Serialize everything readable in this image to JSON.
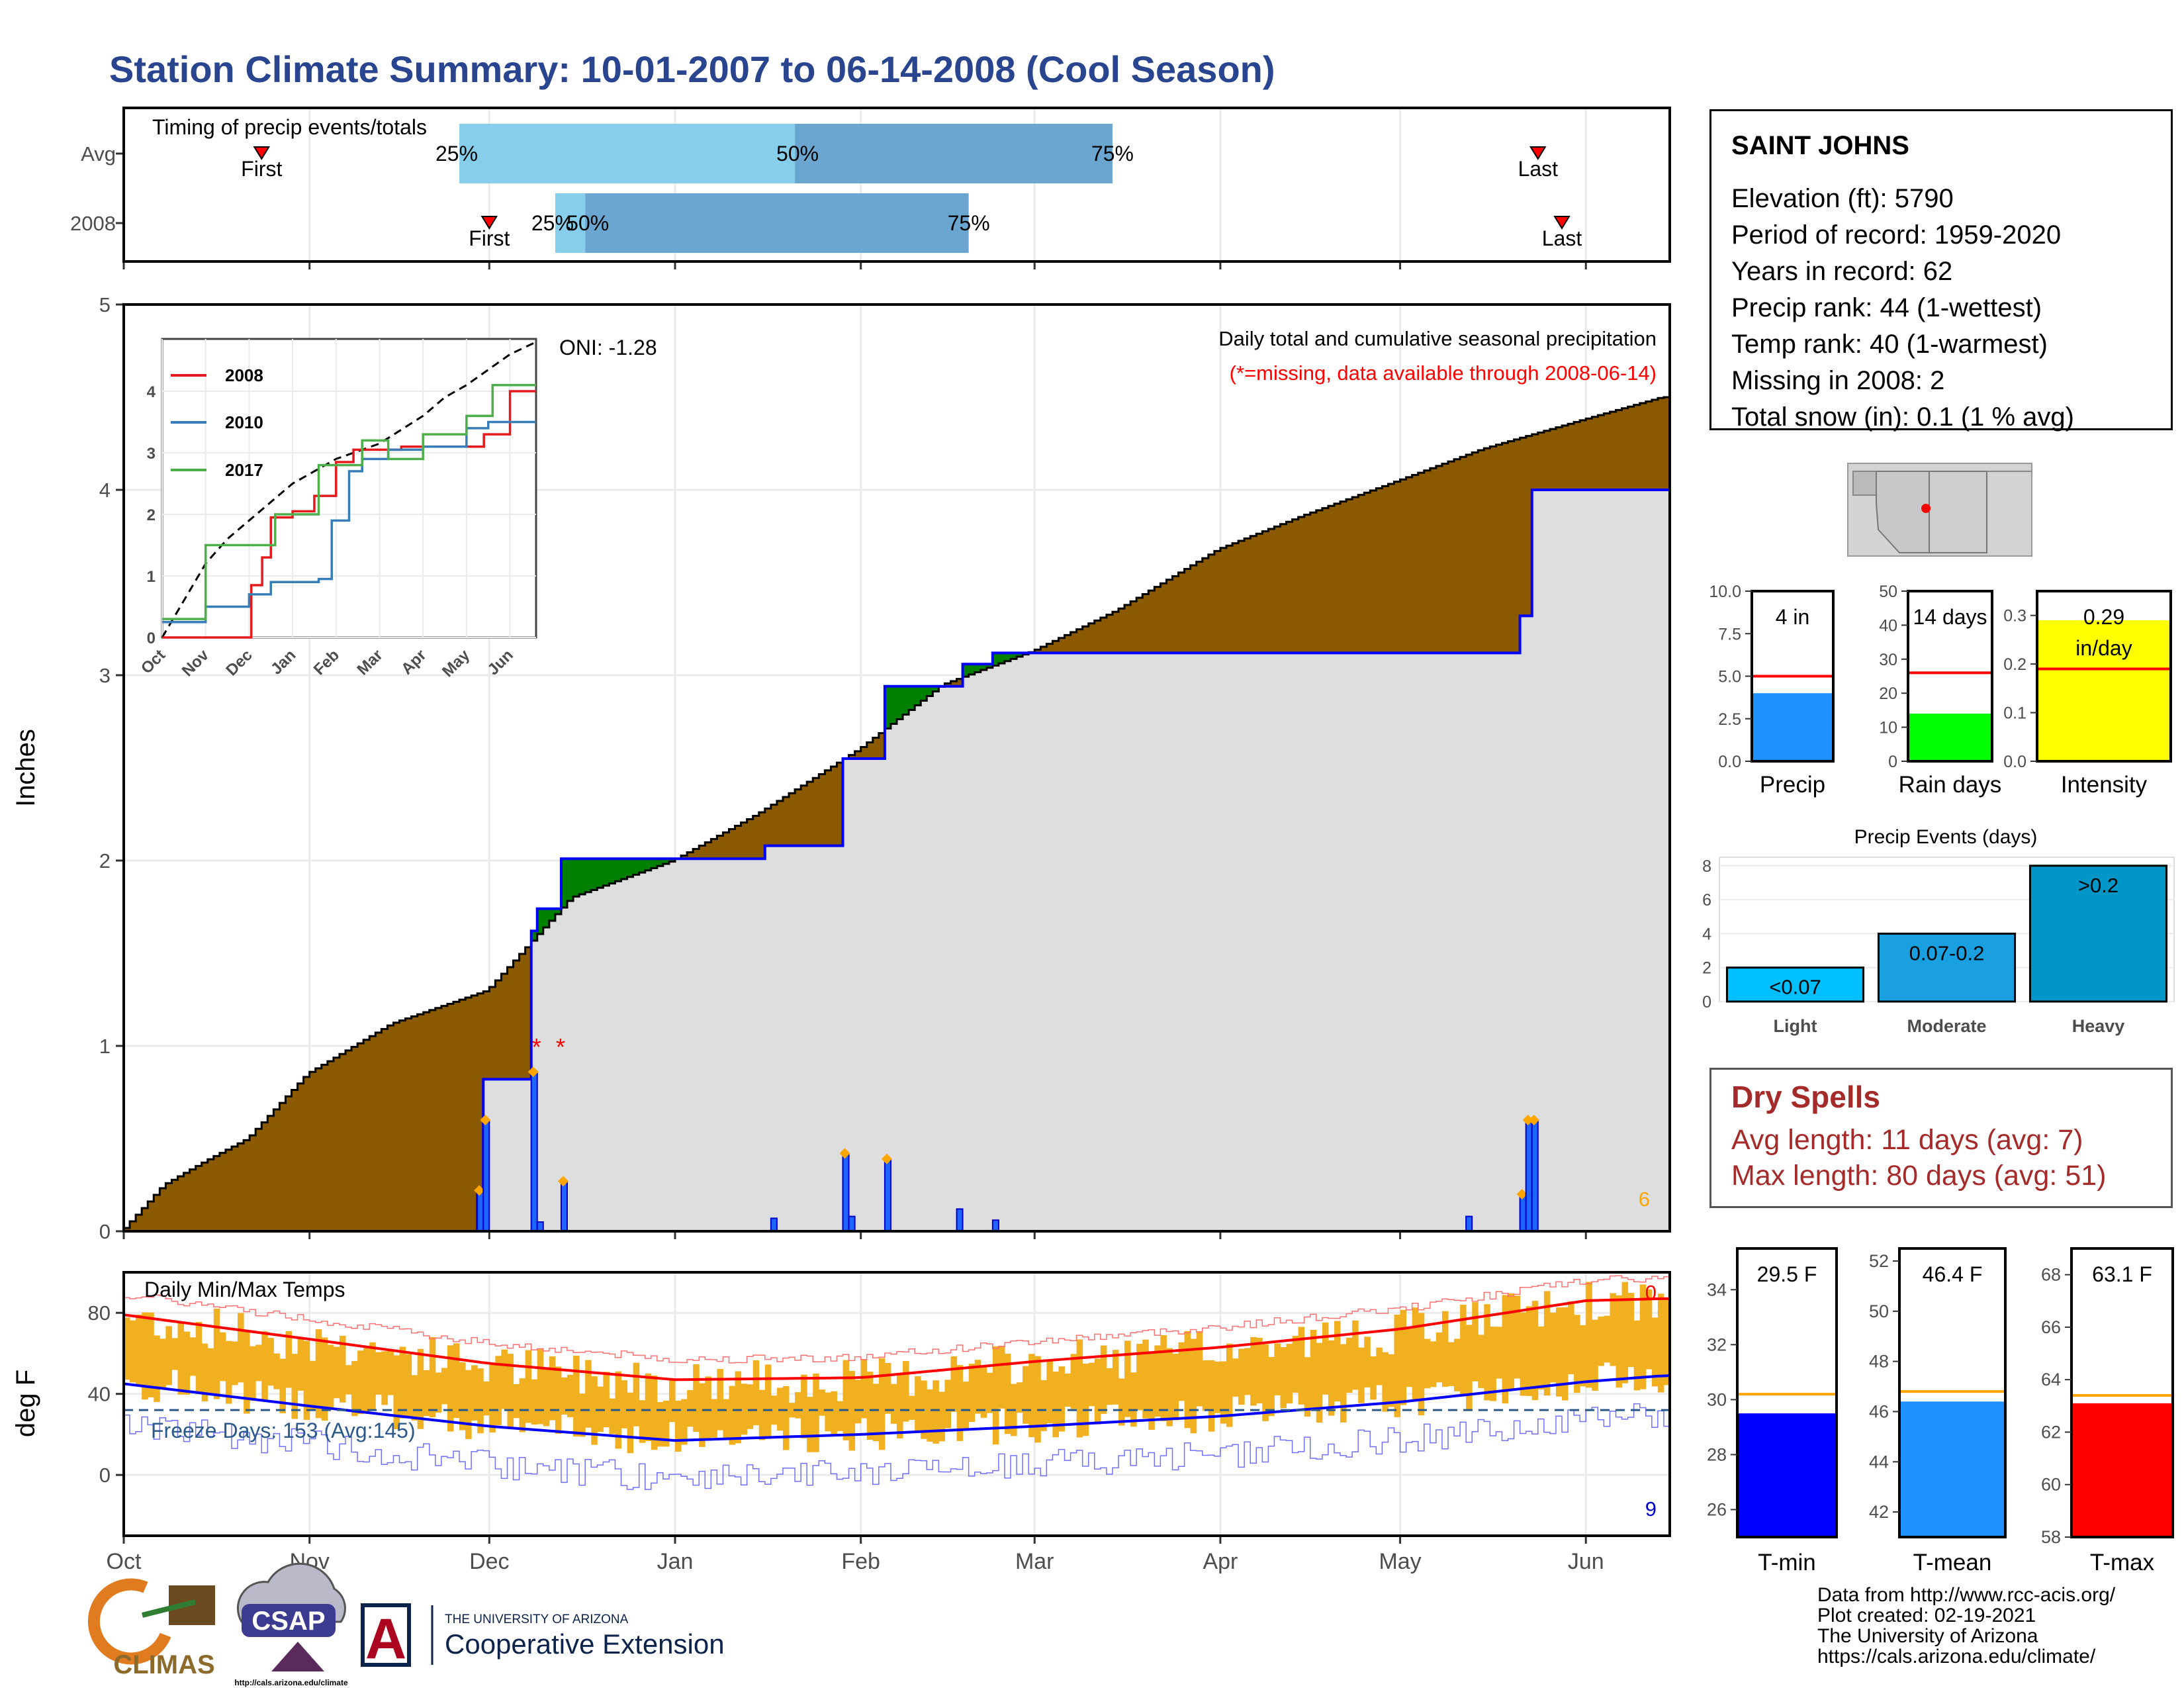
{
  "title": "Station Climate Summary: 10-01-2007 to 06-14-2008 (Cool Season)",
  "months": [
    "Oct",
    "Nov",
    "Dec",
    "Jan",
    "Feb",
    "Mar",
    "Apr",
    "May",
    "Jun"
  ],
  "timing": {
    "label": "Timing of precip events/totals",
    "rows": [
      "Avg",
      "2008"
    ],
    "first_label": "First",
    "last_label": "Last",
    "pct_labels": [
      "25%",
      "50%",
      "75%"
    ],
    "avg": {
      "first": "2007-10-24",
      "p25": "2007-11-26",
      "p50": "2008-01-21",
      "p75": "2008-03-14",
      "last": "2008-05-24"
    },
    "y2008": {
      "first": "2007-12-01",
      "p25": "2007-12-12",
      "p50": "2007-12-17",
      "p75": "2008-02-19",
      "last": "2008-05-28"
    }
  },
  "colors": {
    "above_normal": "#8b5a00",
    "below_normal": "#008000",
    "cumulative_2008": "#0000ff",
    "normal_fill": "#dedede",
    "bar_light": "#87ceeb",
    "bar_dark": "#6aa6d0",
    "tmax": "#ff0000",
    "tmin": "#0000ff",
    "temp_range": "#f0b020",
    "missing": "#ff0000",
    "event_marker": "#ffa500"
  },
  "precip_chart": {
    "ylabel": "Inches",
    "yticks": [
      0,
      1,
      2,
      3,
      4,
      5
    ],
    "ylim": [
      0,
      5
    ],
    "oni": "ONI: -1.28",
    "annot1": "Daily total and cumulative seasonal precipitation",
    "annot2": "(*=missing, data available through 2008-06-14)",
    "count_label": "6",
    "normal_cumulative": {
      "dates": [
        "2007-10-01",
        "2007-10-08",
        "2007-10-15",
        "2007-10-22",
        "2007-11-01",
        "2007-11-15",
        "2007-12-01",
        "2007-12-08",
        "2007-12-15",
        "2008-01-01",
        "2008-01-15",
        "2008-02-01",
        "2008-02-15",
        "2008-03-01",
        "2008-03-15",
        "2008-04-01",
        "2008-04-15",
        "2008-05-01",
        "2008-05-15",
        "2008-06-01",
        "2008-06-14"
      ],
      "values": [
        0.0,
        0.25,
        0.38,
        0.5,
        0.85,
        1.12,
        1.3,
        1.55,
        1.8,
        2.0,
        2.25,
        2.6,
        2.95,
        3.13,
        3.35,
        3.68,
        3.86,
        4.05,
        4.22,
        4.38,
        4.5
      ]
    },
    "cumulative_2008": {
      "dates": [
        "2007-10-01",
        "2007-11-29",
        "2007-11-30",
        "2007-12-07",
        "2007-12-08",
        "2007-12-09",
        "2007-12-13",
        "2008-01-08",
        "2008-01-16",
        "2008-01-28",
        "2008-01-29",
        "2008-02-05",
        "2008-02-18",
        "2008-02-23",
        "2008-03-01",
        "2008-03-20",
        "2008-05-12",
        "2008-05-21",
        "2008-05-23",
        "2008-06-14"
      ],
      "values": [
        0.0,
        0.22,
        0.82,
        0.82,
        1.62,
        1.74,
        2.01,
        2.01,
        2.08,
        2.08,
        2.55,
        2.94,
        3.06,
        3.12,
        3.12,
        3.12,
        3.12,
        3.32,
        4.0,
        4.0
      ]
    },
    "daily_bars": {
      "dates": [
        "2007-11-29",
        "2007-11-30",
        "2007-12-08",
        "2007-12-09",
        "2007-12-13",
        "2008-01-17",
        "2008-01-29",
        "2008-01-30",
        "2008-02-05",
        "2008-02-17",
        "2008-02-23",
        "2008-05-12",
        "2008-05-21",
        "2008-05-22",
        "2008-05-23"
      ],
      "values": [
        0.22,
        0.6,
        0.86,
        0.05,
        0.27,
        0.07,
        0.42,
        0.08,
        0.39,
        0.12,
        0.06,
        0.08,
        0.2,
        0.6,
        0.6
      ]
    },
    "missing_marks": [
      {
        "date": "2007-12-08",
        "label": "*"
      },
      {
        "date": "2007-12-12",
        "label": "*"
      }
    ]
  },
  "inset": {
    "yticks": [
      0,
      1,
      2,
      3,
      4
    ],
    "months": [
      "Oct",
      "Nov",
      "Dec",
      "Jan",
      "Feb",
      "Mar",
      "Apr",
      "May",
      "Jun"
    ],
    "series": [
      {
        "name": "2008",
        "color": "#e41a1c",
        "x": [
          0,
          2.0,
          2.05,
          2.3,
          2.5,
          3.0,
          3.5,
          4.0,
          4.4,
          5.5,
          7.0,
          7.4,
          8.0,
          8.6
        ],
        "y": [
          0,
          0,
          0.85,
          1.3,
          1.95,
          2.05,
          2.3,
          2.85,
          3.05,
          3.1,
          3.1,
          3.3,
          4.0,
          4.0
        ]
      },
      {
        "name": "2010",
        "color": "#377eb8",
        "x": [
          0,
          0.5,
          1.0,
          2.0,
          2.5,
          3.6,
          3.9,
          4.3,
          4.6,
          5.2,
          6.0,
          7.0,
          7.5,
          8.6
        ],
        "y": [
          0.25,
          0.25,
          0.5,
          0.7,
          0.9,
          0.95,
          1.9,
          2.7,
          2.9,
          3.05,
          3.1,
          3.4,
          3.5,
          3.5
        ]
      },
      {
        "name": "2017",
        "color": "#4daf4a",
        "x": [
          0,
          0.5,
          1.0,
          1.2,
          1.9,
          2.6,
          3.2,
          3.6,
          4.1,
          4.6,
          5.2,
          6.0,
          7.0,
          7.6,
          8.6
        ],
        "y": [
          0.3,
          0.3,
          1.5,
          1.5,
          1.5,
          2.0,
          2.0,
          2.8,
          2.8,
          3.2,
          2.9,
          3.3,
          3.6,
          4.1,
          4.1
        ]
      }
    ],
    "avg_dates_x": [
      0,
      0.5,
      1.0,
      1.5,
      2.0,
      3.0,
      4.0,
      5.0,
      6.0,
      6.5,
      7.0,
      7.5,
      8.0,
      8.6
    ],
    "avg_values": [
      0,
      0.6,
      1.2,
      1.6,
      1.9,
      2.5,
      2.9,
      3.15,
      3.6,
      3.9,
      4.1,
      4.35,
      4.6,
      4.8
    ]
  },
  "temp_chart": {
    "label": "Daily Min/Max Temps",
    "ylabel": "deg F",
    "yticks": [
      0,
      40,
      80
    ],
    "ylim": [
      -30,
      100
    ],
    "freeze_label": "Freeze Days: 153 (Avg:145)",
    "freeze_line": 32,
    "tmax_count": "0",
    "tmin_count": "9",
    "normal_max": {
      "dates": [
        "2007-10-01",
        "2007-11-01",
        "2007-12-01",
        "2008-01-01",
        "2008-02-01",
        "2008-03-01",
        "2008-04-01",
        "2008-05-01",
        "2008-06-01",
        "2008-06-14"
      ],
      "values": [
        79,
        67,
        55,
        47,
        48,
        56,
        63,
        72,
        86,
        87
      ]
    },
    "normal_min": {
      "dates": [
        "2007-10-01",
        "2007-11-01",
        "2007-12-01",
        "2008-01-01",
        "2008-02-01",
        "2008-03-01",
        "2008-04-01",
        "2008-05-01",
        "2008-06-01",
        "2008-06-14"
      ],
      "values": [
        45,
        34,
        24,
        17,
        20,
        24,
        29,
        36,
        46,
        49
      ]
    }
  },
  "station": {
    "name": "SAINT JOHNS",
    "lines": [
      "Elevation (ft): 5790",
      "Period of record: 1959-2020",
      "Years in record: 62",
      "Precip rank: 44 (1-wettest)",
      "Temp rank: 40 (1-warmest)",
      "Missing in 2008: 2",
      "Total snow (in): 0.1 (1 % avg)"
    ]
  },
  "gauges": [
    {
      "label": "Precip",
      "value": 4.0,
      "normal": 5.0,
      "text": "4 in",
      "yticks": [
        "0.0",
        "2.5",
        "5.0",
        "7.5",
        "10.0"
      ],
      "min": 0,
      "max": 10,
      "color": "#1e90ff"
    },
    {
      "label": "Rain days",
      "value": 14,
      "normal": 26,
      "text": "14 days",
      "yticks": [
        "0",
        "10",
        "20",
        "30",
        "40",
        "50"
      ],
      "min": 0,
      "max": 50,
      "color": "#00ff00"
    },
    {
      "label": "Intensity",
      "value": 0.29,
      "normal": 0.19,
      "text": "0.29",
      "text2": "in/day",
      "yticks": [
        "0.0",
        "0.1",
        "0.2",
        "0.3"
      ],
      "min": 0,
      "max": 0.35,
      "color": "#ffff00"
    }
  ],
  "events": {
    "title": "Precip Events (days)",
    "categories": [
      "Light",
      "Moderate",
      "Heavy"
    ],
    "values": [
      2,
      4,
      8
    ],
    "bar_labels": [
      "<0.07",
      "0.07-0.2",
      ">0.2"
    ],
    "colors": [
      "#00bfff",
      "#1a9fe0",
      "#0096c7"
    ],
    "yticks": [
      0,
      2,
      4,
      6,
      8
    ],
    "ylim": [
      0,
      8.5
    ]
  },
  "dry_spells": {
    "title": "Dry Spells",
    "avg": "Avg length: 11 days (avg: 7)",
    "max": "Max length: 80 days (avg: 51)"
  },
  "temp_gauges": [
    {
      "label": "T-min",
      "value": 29.5,
      "normal": 30.2,
      "text": "29.5 F",
      "yticks": [
        "26",
        "28",
        "30",
        "32",
        "34"
      ],
      "min": 25,
      "max": 35.5,
      "color": "#0000ff"
    },
    {
      "label": "T-mean",
      "value": 46.4,
      "normal": 46.8,
      "text": "46.4 F",
      "yticks": [
        "42",
        "44",
        "46",
        "48",
        "50",
        "52"
      ],
      "min": 41,
      "max": 52.5,
      "color": "#1e90ff"
    },
    {
      "label": "T-max",
      "value": 63.1,
      "normal": 63.4,
      "text": "63.1 F",
      "yticks": [
        "58",
        "60",
        "62",
        "64",
        "66",
        "68"
      ],
      "min": 58,
      "max": 69,
      "color": "#ff0000"
    }
  ],
  "logos": {
    "climas": "CLIMAS",
    "csap": "CSAP",
    "csap_url": "http://cals.arizona.edu/climate",
    "ua_small": "THE UNIVERSITY OF ARIZONA",
    "ua_big": "Cooperative Extension",
    "ua_letter": "A"
  },
  "credits": [
    "Data from http://www.rcc-acis.org/",
    "Plot created: 02-19-2021",
    "The University of Arizona",
    "https://cals.arizona.edu/climate/"
  ]
}
